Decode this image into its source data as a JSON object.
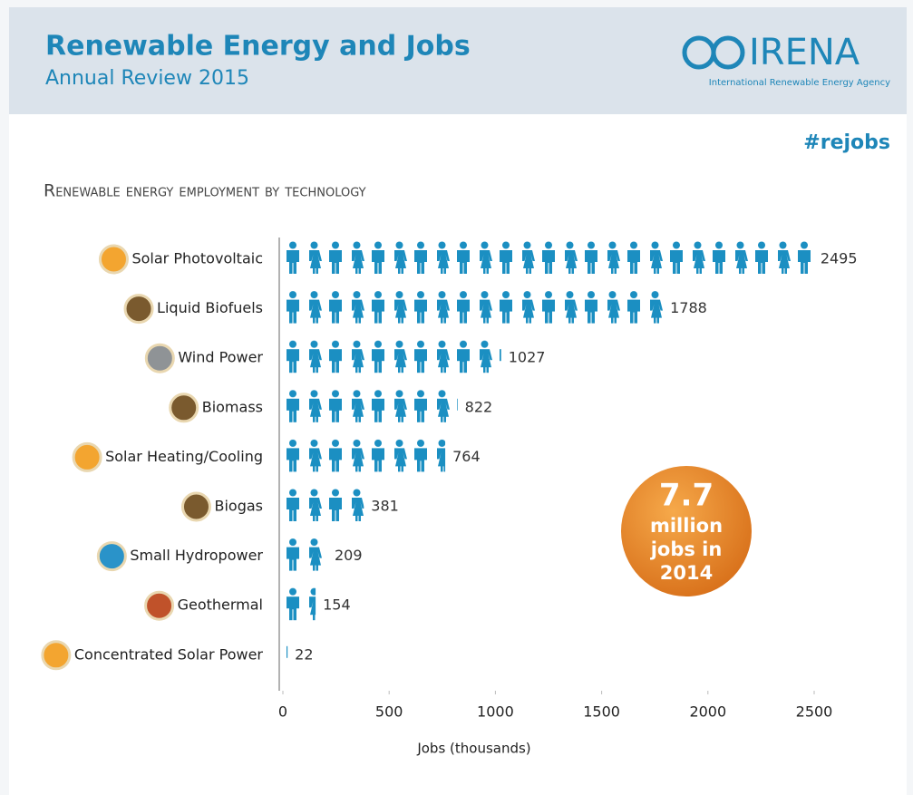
{
  "header": {
    "title": "Renewable Energy and Jobs",
    "subtitle": "Annual Review 2015",
    "logo": "IRENA",
    "agency": "International Renewable Energy Agency",
    "hashtag": "#rejobs"
  },
  "chart_data": {
    "type": "pictogram_bar",
    "title": "Renewable energy employment by technology",
    "categories": [
      "Solar Photovoltaic",
      "Liquid Biofuels",
      "Wind Power",
      "Biomass",
      "Solar Heating/Cooling",
      "Biogas",
      "Small Hydropower",
      "Geothermal",
      "Concentrated Solar Power"
    ],
    "values": [
      2495,
      1788,
      1027,
      822,
      764,
      381,
      209,
      154,
      22
    ],
    "color": "#1b8fc2",
    "xlim": [
      0,
      2500
    ],
    "xticks": [
      0,
      500,
      1000,
      1500,
      2000,
      2500
    ],
    "xlabel": "Jobs (thousands)",
    "badge": {
      "number": "7.7",
      "lines": [
        "million",
        "jobs in",
        "2014"
      ]
    }
  }
}
